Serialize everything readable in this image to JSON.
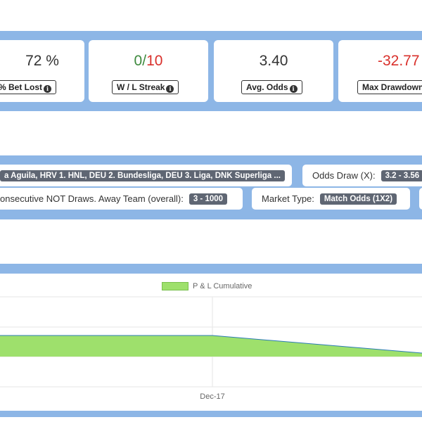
{
  "stats": {
    "pct_bet_lost": {
      "value": "72 %",
      "label": "% Bet Lost"
    },
    "wl_streak": {
      "value_w": "0",
      "value_sep": "/",
      "value_l": "10",
      "label": "W / L Streak"
    },
    "avg_odds": {
      "value": "3.40",
      "label": "Avg. Odds"
    },
    "max_drawdown": {
      "value": "-32.77",
      "label": "Max Drawdown"
    }
  },
  "filters": {
    "leagues": {
      "value": "a Aguila, HRV 1. HNL, DEU 2. Bundesliga, DEU 3. Liga, DNK Superliga ..."
    },
    "odds_draw": {
      "label": "Odds Draw (X):",
      "value": "3.2 - 3.56"
    },
    "consecutive_not_draws": {
      "label": "onsecutive NOT Draws. Away Team (overall):",
      "value": "3 - 1000"
    },
    "market_type": {
      "label": "Market Type:",
      "value": "Match Odds (1X2)"
    }
  },
  "chart_data": {
    "type": "area",
    "series": [
      {
        "name": "P & L Cumulative",
        "color": "#9ee06c"
      }
    ],
    "x_tick_labels": [
      "Dec-17"
    ]
  },
  "colors": {
    "band": "#8db6e6",
    "positive": "#3e8a3e",
    "negative": "#d9302b",
    "area_fill": "#9ee06c",
    "area_line": "#2c7bb6"
  },
  "icons": {
    "info": "info-circle-icon"
  }
}
